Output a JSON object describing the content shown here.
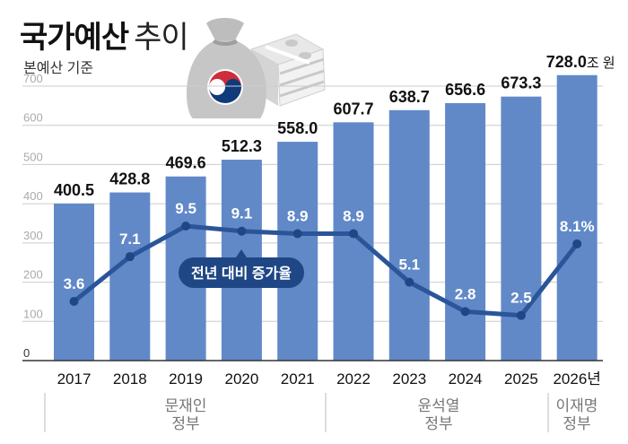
{
  "header": {
    "title_bold": "국가예산",
    "title_light": "추이",
    "subtitle": "본예산 기준"
  },
  "illustration": {
    "icon": "money-bag-with-cash-stacks-icon",
    "emblem": "taegeuk-emblem"
  },
  "colors": {
    "bar": "#6189c8",
    "line": "#2a5599",
    "line_marker": "#1f4785",
    "callout_bg": "#1f4785",
    "grid": "#cccccc",
    "tick": "#aaaaaa"
  },
  "chart_data": {
    "type": "bar",
    "title": "국가예산 추이",
    "subtitle": "본예산 기준",
    "xlabel": "",
    "ylabel": "",
    "unit": "조 원",
    "ylim": [
      0,
      700
    ],
    "yticks": [
      0,
      100,
      200,
      300,
      400,
      500,
      600,
      700
    ],
    "grid": true,
    "categories": [
      "2017",
      "2018",
      "2019",
      "2020",
      "2021",
      "2022",
      "2023",
      "2024",
      "2025",
      "2026년"
    ],
    "series": [
      {
        "name": "국가예산 (조 원)",
        "type": "bar",
        "values": [
          400.5,
          428.8,
          469.6,
          512.3,
          558.0,
          607.7,
          638.7,
          656.6,
          673.3,
          728.0
        ],
        "labels": [
          "400.5",
          "428.8",
          "469.6",
          "512.3",
          "558.0",
          "607.7",
          "638.7",
          "656.6",
          "673.3",
          "728.0"
        ],
        "last_label_unit": "조 원"
      },
      {
        "name": "전년 대비 증가율",
        "type": "line",
        "unit": "%",
        "values": [
          3.6,
          7.1,
          9.5,
          9.1,
          8.9,
          8.9,
          5.1,
          2.8,
          2.5,
          8.1
        ],
        "labels": [
          "3.6",
          "7.1",
          "9.5",
          "9.1",
          "8.9",
          "8.9",
          "5.1",
          "2.8",
          "2.5",
          "8.1%"
        ]
      }
    ],
    "annotations": [
      {
        "text": "전년 대비 증가율",
        "type": "callout",
        "points_to": "2020"
      }
    ],
    "groups": [
      {
        "label_line1": "문재인",
        "label_line2": "정부",
        "range": [
          "2017",
          "2021"
        ]
      },
      {
        "label_line1": "윤석열",
        "label_line2": "정부",
        "range": [
          "2022",
          "2025"
        ]
      },
      {
        "label_line1": "이재명",
        "label_line2": "정부",
        "range": [
          "2026년",
          "2026년"
        ]
      }
    ]
  }
}
